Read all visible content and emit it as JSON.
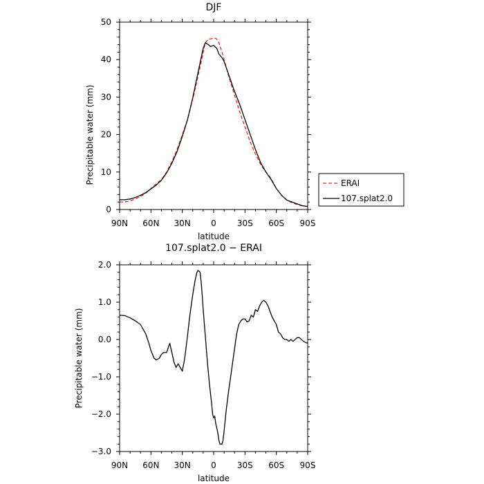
{
  "chart_data": [
    {
      "type": "line",
      "title": "DJF",
      "xlabel": "latitude",
      "ylabel": "Precipitable water  (mm)",
      "xlim": [
        90,
        -90
      ],
      "ylim": [
        0,
        50
      ],
      "x_ticks": [
        "90N",
        "60N",
        "30N",
        "0",
        "30S",
        "60S",
        "90S"
      ],
      "y_ticks": [
        "0",
        "10",
        "20",
        "30",
        "40",
        "50"
      ],
      "grid": false,
      "legend_placement": "outside-right",
      "series": [
        {
          "name": "ERAI",
          "color": "#e8281e",
          "style": "dashed",
          "x": [
            90,
            85,
            80,
            75,
            70,
            65,
            60,
            55,
            50,
            45,
            40,
            35,
            30,
            25,
            20,
            15,
            10,
            8,
            5,
            3,
            0,
            -3,
            -5,
            -8,
            -10,
            -15,
            -20,
            -25,
            -30,
            -35,
            -40,
            -45,
            -50,
            -55,
            -60,
            -65,
            -70,
            -75,
            -80,
            -85,
            -90
          ],
          "y": [
            2.0,
            2.0,
            2.3,
            2.8,
            3.5,
            4.3,
            5.6,
            6.8,
            8.0,
            10.0,
            12.8,
            16.0,
            20.0,
            24.0,
            29.5,
            35.5,
            42.0,
            44.5,
            45.5,
            45.5,
            45.8,
            45.5,
            44.5,
            42.0,
            40.0,
            35.0,
            30.5,
            26.0,
            22.0,
            18.0,
            14.8,
            12.0,
            10.0,
            8.3,
            5.6,
            3.8,
            2.5,
            1.8,
            1.3,
            1.0,
            0.8
          ]
        },
        {
          "name": "107.splat2.0",
          "color": "#000000",
          "style": "solid",
          "x": [
            90,
            85,
            80,
            75,
            70,
            65,
            60,
            55,
            50,
            45,
            40,
            35,
            30,
            25,
            20,
            15,
            10,
            8,
            5,
            3,
            0,
            -3,
            -5,
            -8,
            -10,
            -15,
            -20,
            -25,
            -30,
            -35,
            -40,
            -45,
            -50,
            -55,
            -60,
            -65,
            -70,
            -75,
            -80,
            -85,
            -90
          ],
          "y": [
            2.6,
            2.6,
            2.8,
            3.2,
            3.8,
            4.5,
            5.5,
            6.5,
            7.8,
            9.8,
            12.3,
            15.5,
            19.5,
            24.0,
            29.8,
            36.5,
            43.0,
            44.5,
            44.0,
            43.5,
            43.8,
            43.0,
            41.5,
            40.5,
            39.5,
            35.5,
            31.5,
            28.0,
            24.0,
            20.0,
            16.0,
            12.5,
            10.0,
            8.0,
            5.6,
            3.8,
            2.5,
            2.0,
            1.5,
            1.0,
            0.8
          ]
        }
      ]
    },
    {
      "type": "line",
      "title": "107.splat2.0 − ERAI",
      "xlabel": "latitude",
      "ylabel": "Precipitable water  (mm)",
      "xlim": [
        90,
        -90
      ],
      "ylim": [
        -3.0,
        2.0
      ],
      "x_ticks": [
        "90N",
        "60N",
        "30N",
        "0",
        "30S",
        "60S",
        "90S"
      ],
      "y_ticks": [
        "−3.0",
        "−2.0",
        "−1.0",
        "0.0",
        "1.0",
        "2.0"
      ],
      "grid": false,
      "series": [
        {
          "color": "#000000",
          "style": "solid",
          "x": [
            90,
            85,
            80,
            75,
            70,
            65,
            62,
            60,
            57,
            55,
            52,
            50,
            48,
            45,
            42,
            40,
            38,
            36,
            34,
            32,
            30,
            28,
            27,
            25,
            23,
            20,
            18,
            16,
            15,
            14,
            13,
            12,
            11,
            10,
            8,
            6,
            4,
            2,
            1,
            0,
            -1,
            -2,
            -4,
            -5,
            -6,
            -8,
            -9,
            -10,
            -12,
            -14,
            -16,
            -18,
            -20,
            -22,
            -24,
            -26,
            -28,
            -30,
            -32,
            -34,
            -36,
            -38,
            -40,
            -42,
            -44,
            -46,
            -48,
            -50,
            -52,
            -54,
            -56,
            -58,
            -60,
            -62,
            -64,
            -66,
            -68,
            -70,
            -72,
            -74,
            -76,
            -78,
            -80,
            -82,
            -84,
            -86,
            -88,
            -90
          ],
          "y": [
            0.65,
            0.64,
            0.58,
            0.5,
            0.4,
            0.15,
            -0.1,
            -0.3,
            -0.5,
            -0.55,
            -0.5,
            -0.4,
            -0.35,
            -0.35,
            -0.1,
            -0.35,
            -0.6,
            -0.75,
            -0.65,
            -0.75,
            -0.85,
            -0.55,
            -0.35,
            0.1,
            0.6,
            1.2,
            1.55,
            1.8,
            1.85,
            1.83,
            1.8,
            1.55,
            1.2,
            0.8,
            0.1,
            -0.6,
            -1.2,
            -1.7,
            -2.0,
            -2.1,
            -2.05,
            -2.25,
            -2.5,
            -2.7,
            -2.8,
            -2.8,
            -2.7,
            -2.45,
            -1.9,
            -1.45,
            -1.05,
            -0.65,
            -0.25,
            0.15,
            0.4,
            0.5,
            0.55,
            0.55,
            0.47,
            0.5,
            0.65,
            0.6,
            0.8,
            0.75,
            0.9,
            1.0,
            1.05,
            1.0,
            0.9,
            0.75,
            0.6,
            0.5,
            0.4,
            0.2,
            0.15,
            0.05,
            0.0,
            0.0,
            -0.05,
            0.0,
            -0.05,
            0.0,
            0.05,
            0.05,
            0.0,
            -0.05,
            -0.08,
            -0.1
          ]
        }
      ]
    }
  ]
}
